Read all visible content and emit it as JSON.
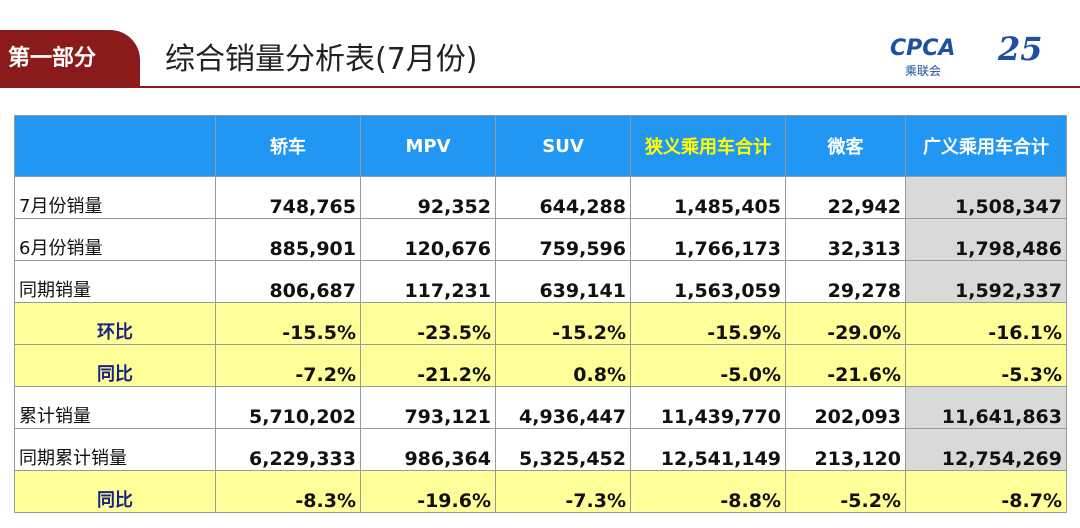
{
  "header": {
    "section": "第一部分",
    "title": "综合销量分析表(7月份)",
    "logo": "CPCA",
    "logo_sub": "乘联会",
    "anniversary": "25"
  },
  "table": {
    "columns": [
      "轿车",
      "MPV",
      "SUV",
      "狭义乘用车合计",
      "微客",
      "广义乘用车合计"
    ],
    "rows": [
      {
        "label": "7月份销量",
        "kind": "num",
        "values": [
          "748,765",
          "92,352",
          "644,288",
          "1,485,405",
          "22,942",
          "1,508,347"
        ]
      },
      {
        "label": "6月份销量",
        "kind": "num",
        "values": [
          "885,901",
          "120,676",
          "759,596",
          "1,766,173",
          "32,313",
          "1,798,486"
        ]
      },
      {
        "label": "同期销量",
        "kind": "num",
        "values": [
          "806,687",
          "117,231",
          "639,141",
          "1,563,059",
          "29,278",
          "1,592,337"
        ]
      },
      {
        "label": "环比",
        "kind": "pct",
        "values": [
          "-15.5%",
          "-23.5%",
          "-15.2%",
          "-15.9%",
          "-29.0%",
          "-16.1%"
        ]
      },
      {
        "label": "同比",
        "kind": "pct",
        "values": [
          "-7.2%",
          "-21.2%",
          "0.8%",
          "-5.0%",
          "-21.6%",
          "-5.3%"
        ]
      },
      {
        "label": "累计销量",
        "kind": "num",
        "values": [
          "5,710,202",
          "793,121",
          "4,936,447",
          "11,439,770",
          "202,093",
          "11,641,863"
        ]
      },
      {
        "label": "同期累计销量",
        "kind": "num",
        "values": [
          "6,229,333",
          "986,364",
          "5,325,452",
          "12,541,149",
          "213,120",
          "12,754,269"
        ]
      },
      {
        "label": "同比",
        "kind": "pct",
        "values": [
          "-8.3%",
          "-19.6%",
          "-7.3%",
          "-8.8%",
          "-5.2%",
          "-8.7%"
        ]
      }
    ]
  }
}
